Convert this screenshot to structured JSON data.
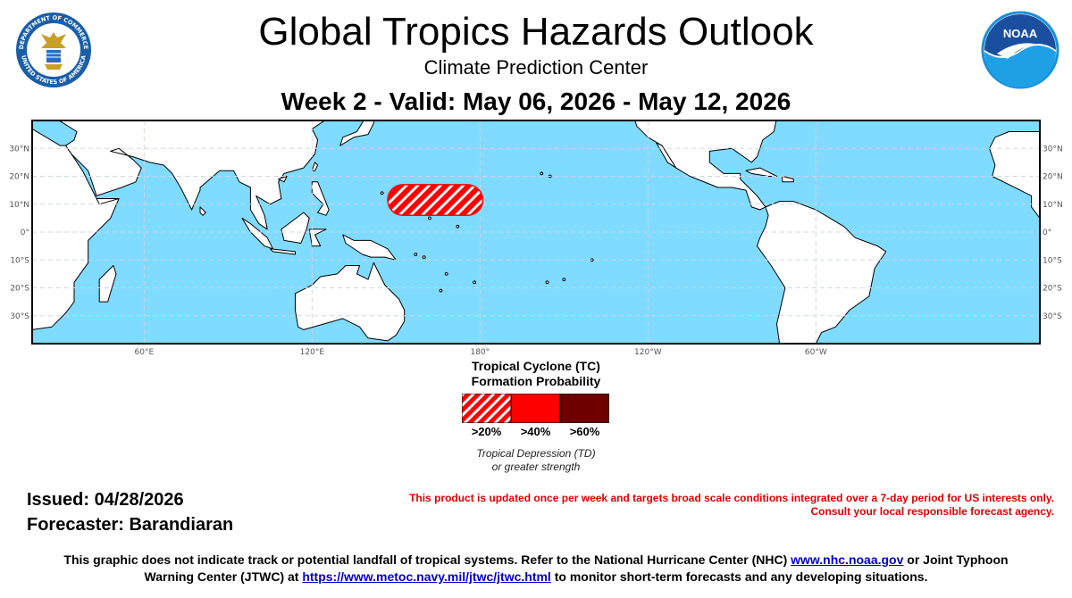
{
  "header": {
    "title": "Global Tropics Hazards Outlook",
    "subtitle": "Climate Prediction Center",
    "week": "Week 2 - Valid: May 06, 2026 - May 12, 2026"
  },
  "logos": {
    "left": {
      "name": "department-of-commerce-seal",
      "text_top": "DEPARTMENT OF COMMERCE",
      "text_bottom": "UNITED STATES OF AMERICA"
    },
    "right": {
      "name": "noaa-logo",
      "text": "NOAA"
    }
  },
  "map": {
    "projection": "equirectangular, Pacific-centered",
    "lon_range": [
      20,
      380
    ],
    "lat_range": [
      -40,
      40
    ],
    "ocean_color": "#7fdbff",
    "land_color": "#ffffff",
    "lat_labels": [
      "30°N",
      "20°N",
      "10°N",
      "0°",
      "10°S",
      "20°S",
      "30°S"
    ],
    "lon_labels": [
      "60°E",
      "120°E",
      "180°",
      "120°W",
      "60°W"
    ],
    "hazard": {
      "type": "Tropical Cyclone formation probability >20%",
      "lon_range": [
        147,
        181
      ],
      "lat_range": [
        6,
        17
      ],
      "color": "#ff0000"
    }
  },
  "legend": {
    "title_line1": "Tropical Cyclone (TC)",
    "title_line2": "Formation Probability",
    "swatches": [
      {
        "label": ">20%",
        "color": "#ff0000",
        "pattern": "hatched"
      },
      {
        "label": ">40%",
        "color": "#ff0000",
        "pattern": "solid"
      },
      {
        "label": ">60%",
        "color": "#6e0000",
        "pattern": "solid"
      }
    ],
    "note_line1": "Tropical Depression (TD)",
    "note_line2": "or greater strength"
  },
  "issued": "Issued: 04/28/2026",
  "forecaster": "Forecaster: Barandiaran",
  "disclaimer": {
    "line1": "This product is updated once per week and targets broad scale conditions integrated over a 7-day period for US interests only.",
    "line2": "Consult your local responsible forecast agency."
  },
  "footer": {
    "line1_pre": "This graphic does not indicate track or potential landfall of tropical systems. Refer to the National Hurricane Center (NHC) ",
    "nhc_link": "www.nhc.noaa.gov",
    "line1_post": " or Joint Typhoon",
    "line2_pre": "Warning Center (JTWC) at ",
    "jtwc_link": "https://www.metoc.navy.mil/jtwc/jtwc.html",
    "line2_post": " to monitor short-term forecasts and any developing situations."
  }
}
